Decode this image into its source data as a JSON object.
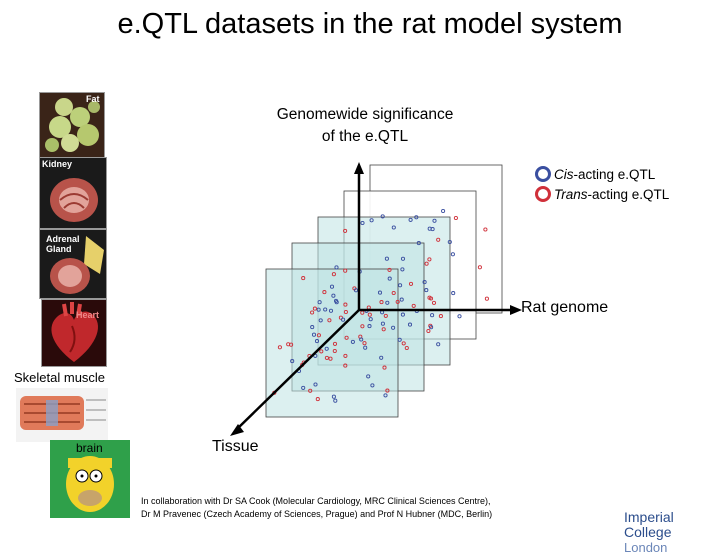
{
  "slide": {
    "title": "e.QTL datasets in the rat model system"
  },
  "tissues": {
    "fat": "Fat",
    "kidney": "Kidney",
    "adrenal_line1": "Adrenal",
    "adrenal_line2": "Gland",
    "heart": "Heart",
    "skeletal_muscle": "Skeletal muscle",
    "brain": "brain"
  },
  "diagram": {
    "y_axis_label_line1": "Genomewide significance",
    "y_axis_label_line2": "of the e.QTL",
    "x_axis_label": "Rat genome",
    "z_axis_label": "Tissue",
    "legend": [
      {
        "label_italic": "Cis",
        "label_rest": "-acting e.QTL",
        "color": "#3a4fa0"
      },
      {
        "label_italic": "Trans",
        "label_rest": "-acting e.QTL",
        "color": "#d0303a"
      }
    ],
    "panel_color": "#bfe3e3",
    "panel_count": 5
  },
  "footer": {
    "collab_line1": "In collaboration with Dr SA Cook (Molecular Cardiology, MRC Clinical Sciences Centre),",
    "collab_line2": "Dr M Pravenec (Czech Academy of Sciences, Prague) and Prof N Hubner (MDC, Berlin)",
    "logo_line1": "Imperial College",
    "logo_line2": "London"
  }
}
